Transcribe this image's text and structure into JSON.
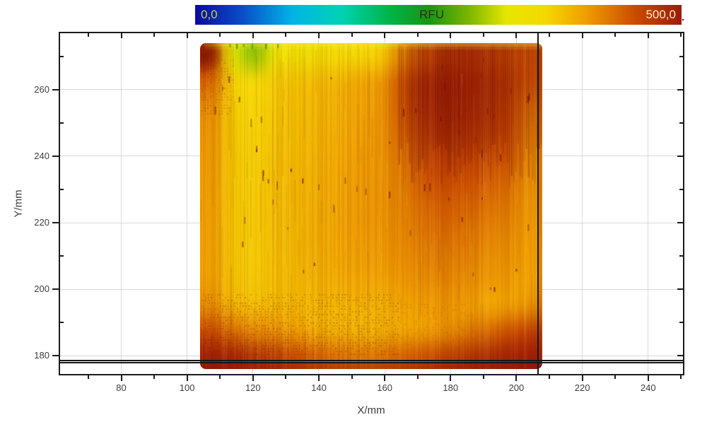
{
  "chart_data": {
    "type": "heatmap",
    "title": "",
    "xlabel": "X/mm",
    "ylabel": "Y/mm",
    "units": "RFU",
    "colorbar": {
      "label": "RFU",
      "min": 0,
      "max": 500,
      "min_label": "0,0",
      "max_label": "500,0",
      "trailing_mark": ".",
      "min_label_color": "#c6d22b",
      "label_color": "#223408",
      "max_label_color": "#f7eccd",
      "trailing_mark_color": "#7a1206"
    },
    "xlim": [
      61,
      251
    ],
    "ylim": [
      174.1,
      277.4
    ],
    "x_ticks_major": [
      80,
      100,
      120,
      140,
      160,
      180,
      200,
      220,
      240
    ],
    "x_ticks_minor": [
      70,
      90,
      110,
      130,
      150,
      170,
      190,
      210,
      230,
      250
    ],
    "y_ticks_major": [
      180,
      200,
      220,
      240,
      260
    ],
    "y_ticks_minor": [
      190,
      210,
      230,
      250,
      270
    ],
    "grid_on": true,
    "legend_position": "top-colorbar",
    "color_scale": [
      [
        0.0,
        "#0a0aa0"
      ],
      [
        0.1,
        "#0a50c8"
      ],
      [
        0.2,
        "#00b4e6"
      ],
      [
        0.3,
        "#00d2b4"
      ],
      [
        0.4,
        "#00b446"
      ],
      [
        0.48,
        "#189614"
      ],
      [
        0.56,
        "#78b400"
      ],
      [
        0.64,
        "#e6e600"
      ],
      [
        0.72,
        "#f5d800"
      ],
      [
        0.8,
        "#f0a000"
      ],
      [
        0.9,
        "#cd4f00"
      ],
      [
        1.0,
        "#9b1b06"
      ]
    ],
    "cursor_lines": {
      "vertical_x_mm": 206.6,
      "horizontal_y_mm": [
        178.6,
        177.85
      ]
    },
    "heatmap": {
      "x_start": 104,
      "x_end": 208,
      "y_start": 176,
      "y_end": 274,
      "rows_top_to_bottom": true,
      "values": [
        [
          485,
          320,
          285,
          330,
          345,
          350,
          355,
          360,
          370,
          420,
          462,
          478,
          482,
          476,
          462,
          450
        ],
        [
          438,
          365,
          358,
          370,
          375,
          380,
          386,
          395,
          405,
          450,
          490,
          496,
          493,
          488,
          472,
          448
        ],
        [
          415,
          368,
          362,
          373,
          378,
          384,
          390,
          398,
          408,
          448,
          488,
          494,
          491,
          486,
          466,
          432
        ],
        [
          408,
          370,
          365,
          375,
          381,
          386,
          393,
          400,
          410,
          440,
          478,
          487,
          483,
          477,
          458,
          422
        ],
        [
          405,
          372,
          368,
          377,
          382,
          388,
          395,
          403,
          410,
          430,
          462,
          471,
          467,
          459,
          446,
          415
        ],
        [
          403,
          373,
          370,
          379,
          384,
          390,
          397,
          405,
          410,
          424,
          448,
          456,
          451,
          443,
          433,
          410
        ],
        [
          402,
          374,
          371,
          380,
          385,
          391,
          398,
          406,
          410,
          420,
          436,
          443,
          439,
          431,
          423,
          406
        ],
        [
          400,
          374,
          372,
          381,
          386,
          392,
          398,
          405,
          408,
          416,
          428,
          433,
          429,
          421,
          414,
          402
        ],
        [
          400,
          374,
          372,
          380,
          385,
          390,
          396,
          402,
          405,
          412,
          420,
          424,
          420,
          413,
          408,
          400
        ],
        [
          402,
          376,
          374,
          380,
          384,
          388,
          392,
          396,
          398,
          405,
          412,
          415,
          412,
          406,
          402,
          398
        ],
        [
          414,
          386,
          382,
          385,
          386,
          384,
          386,
          388,
          390,
          396,
          402,
          406,
          402,
          398,
          399,
          412
        ],
        [
          456,
          432,
          420,
          412,
          400,
          392,
          390,
          388,
          390,
          395,
          402,
          412,
          424,
          436,
          449,
          466
        ],
        [
          498,
          492,
          484,
          472,
          455,
          440,
          432,
          428,
          430,
          438,
          452,
          466,
          478,
          488,
          494,
          498
        ]
      ]
    }
  }
}
